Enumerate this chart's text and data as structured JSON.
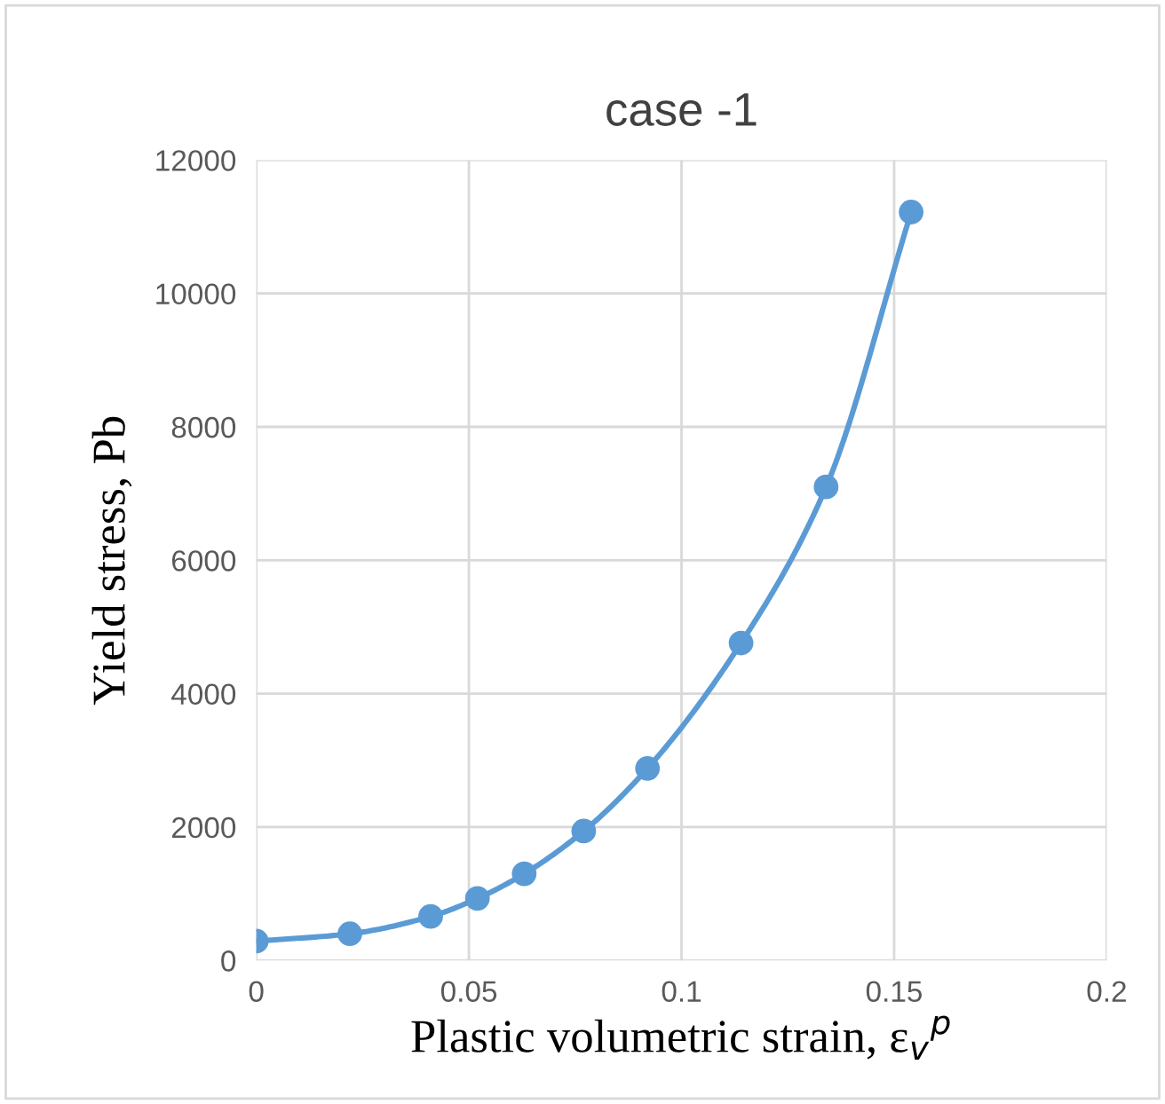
{
  "chart_data": {
    "type": "line",
    "title": "case -1",
    "xlabel": "Plastic volumetric strain, ε$_{v}$$^{p}$",
    "ylabel": "Yield stress, Pb",
    "x": [
      0,
      0.022,
      0.041,
      0.052,
      0.063,
      0.077,
      0.092,
      0.114,
      0.134,
      0.154
    ],
    "series": [
      {
        "color": "#5b9bd5",
        "values": [
          290,
          400,
          660,
          930,
          1300,
          1940,
          2880,
          4760,
          7100,
          11220
        ]
      }
    ],
    "xlim": [
      0,
      0.2
    ],
    "xticks": [
      0,
      0.05,
      0.1,
      0.15,
      0.2
    ],
    "ylim": [
      0,
      12000
    ],
    "yticks": [
      0,
      2000,
      4000,
      6000,
      8000,
      10000,
      12000
    ],
    "grid": true,
    "marker": "circle",
    "line_style": "solid"
  }
}
